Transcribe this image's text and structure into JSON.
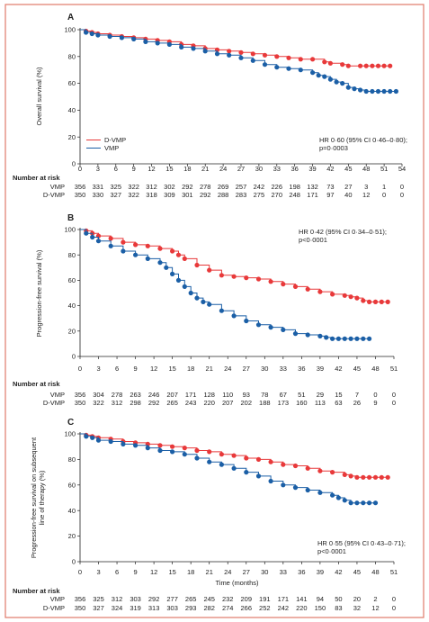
{
  "colors": {
    "dvmp": "#e8393a",
    "vmp": "#1b5fa6",
    "border": "#e07a6a",
    "text": "#222222"
  },
  "x_label": "Time (months)",
  "nar_title": "Number at risk",
  "chart_data": [
    {
      "type": "line",
      "panel": "A",
      "ylabel": "Overall survival (%)",
      "xlabel": "",
      "xticks": [
        0,
        3,
        6,
        9,
        12,
        15,
        18,
        21,
        24,
        27,
        30,
        33,
        36,
        39,
        42,
        45,
        48,
        51,
        54
      ],
      "yticks": [
        0,
        20,
        40,
        60,
        80,
        100
      ],
      "xlim": [
        0,
        54
      ],
      "ylim": [
        0,
        100
      ],
      "legend": [
        "D-VMP",
        "VMP"
      ],
      "annotation": [
        "HR 0·60 (95% CI 0·46–0·80);",
        "p=0·0003"
      ],
      "series": [
        {
          "name": "D-VMP",
          "color": "#e8393a",
          "x": [
            0,
            1,
            2,
            3,
            5,
            7,
            9,
            11,
            13,
            15,
            17,
            19,
            21,
            23,
            25,
            27,
            29,
            31,
            33,
            35,
            37,
            39,
            41,
            42,
            44,
            45,
            47,
            48,
            49,
            50,
            51,
            52
          ],
          "y": [
            100,
            99,
            98,
            97,
            96,
            95,
            94,
            93,
            92,
            91,
            89,
            88,
            86,
            85,
            84,
            83,
            82,
            81,
            80,
            79,
            78,
            78,
            76,
            75,
            74,
            73,
            73,
            73,
            73,
            73,
            73,
            73
          ]
        },
        {
          "name": "VMP",
          "color": "#1b5fa6",
          "x": [
            0,
            1,
            2,
            3,
            5,
            7,
            9,
            11,
            13,
            15,
            17,
            19,
            21,
            23,
            25,
            27,
            29,
            31,
            33,
            35,
            37,
            39,
            40,
            41,
            42,
            43,
            44,
            45,
            46,
            47,
            48,
            49,
            50,
            51,
            52,
            53
          ],
          "y": [
            100,
            98,
            97,
            96,
            95,
            94,
            93,
            91,
            90,
            89,
            87,
            86,
            84,
            82,
            81,
            79,
            77,
            74,
            72,
            71,
            70,
            68,
            66,
            65,
            63,
            61,
            60,
            57,
            56,
            55,
            54,
            54,
            54,
            54,
            54,
            54
          ]
        }
      ],
      "number_at_risk": [
        {
          "name": "VMP",
          "values": [
            "356",
            "331",
            "325",
            "322",
            "312",
            "302",
            "292",
            "278",
            "269",
            "257",
            "242",
            "226",
            "198",
            "132",
            "73",
            "27",
            "3",
            "1",
            "0"
          ]
        },
        {
          "name": "D-VMP",
          "values": [
            "350",
            "330",
            "327",
            "322",
            "318",
            "309",
            "301",
            "292",
            "288",
            "283",
            "275",
            "270",
            "248",
            "171",
            "97",
            "40",
            "12",
            "0",
            "0"
          ]
        }
      ]
    },
    {
      "type": "line",
      "panel": "B",
      "ylabel": "Progression-free survival (%)",
      "xlabel": "",
      "xticks": [
        0,
        3,
        6,
        9,
        12,
        15,
        18,
        21,
        24,
        27,
        30,
        33,
        36,
        39,
        42,
        45,
        48,
        51
      ],
      "yticks": [
        0,
        20,
        40,
        60,
        80,
        100
      ],
      "xlim": [
        0,
        51
      ],
      "ylim": [
        0,
        100
      ],
      "annotation": [
        "HR 0·42 (95% CI 0·34–0·51);",
        "p<0·0001"
      ],
      "series": [
        {
          "name": "D-VMP",
          "color": "#e8393a",
          "x": [
            0,
            1,
            2,
            3,
            5,
            7,
            9,
            11,
            13,
            15,
            16,
            17,
            19,
            21,
            23,
            25,
            27,
            29,
            31,
            33,
            35,
            37,
            39,
            41,
            43,
            44,
            45,
            46,
            47,
            48,
            49,
            50
          ],
          "y": [
            100,
            99,
            97,
            95,
            93,
            90,
            88,
            87,
            85,
            83,
            80,
            77,
            72,
            68,
            64,
            63,
            62,
            61,
            59,
            57,
            55,
            53,
            51,
            49,
            48,
            47,
            46,
            44,
            43,
            43,
            43,
            43
          ]
        },
        {
          "name": "VMP",
          "color": "#1b5fa6",
          "x": [
            0,
            1,
            2,
            3,
            5,
            7,
            9,
            11,
            13,
            14,
            15,
            16,
            17,
            18,
            19,
            20,
            21,
            23,
            25,
            27,
            29,
            31,
            33,
            35,
            37,
            39,
            40,
            41,
            42,
            43,
            44,
            45,
            46,
            47
          ],
          "y": [
            100,
            97,
            94,
            91,
            87,
            83,
            80,
            77,
            74,
            70,
            65,
            60,
            55,
            50,
            46,
            43,
            41,
            36,
            32,
            28,
            25,
            23,
            21,
            18,
            17,
            16,
            15,
            14,
            14,
            14,
            14,
            14,
            14,
            14
          ]
        }
      ],
      "number_at_risk": [
        {
          "name": "VMP",
          "values": [
            "356",
            "304",
            "278",
            "263",
            "246",
            "207",
            "171",
            "128",
            "110",
            "93",
            "78",
            "67",
            "51",
            "29",
            "15",
            "7",
            "0",
            "0"
          ]
        },
        {
          "name": "D-VMP",
          "values": [
            "350",
            "322",
            "312",
            "298",
            "292",
            "265",
            "243",
            "220",
            "207",
            "202",
            "188",
            "173",
            "160",
            "113",
            "63",
            "26",
            "9",
            "0"
          ]
        }
      ]
    },
    {
      "type": "line",
      "panel": "C",
      "ylabel": "Progression-free survival on subsequent line of therapy (%)",
      "ylabel_lines": [
        "Progression-free survival on subsequent",
        "line of therapy (%)"
      ],
      "xlabel": "Time (months)",
      "xticks": [
        0,
        3,
        6,
        9,
        12,
        15,
        18,
        21,
        24,
        27,
        30,
        33,
        36,
        39,
        42,
        45,
        48,
        51
      ],
      "yticks": [
        0,
        20,
        40,
        60,
        80,
        100
      ],
      "xlim": [
        0,
        51
      ],
      "ylim": [
        0,
        100
      ],
      "annotation": [
        "HR 0·55 (95% CI 0·43–0·71);",
        "p<0·0001"
      ],
      "series": [
        {
          "name": "D-VMP",
          "color": "#e8393a",
          "x": [
            0,
            1,
            2,
            3,
            5,
            7,
            9,
            11,
            13,
            15,
            17,
            19,
            21,
            23,
            25,
            27,
            29,
            31,
            33,
            35,
            37,
            39,
            41,
            43,
            44,
            45,
            46,
            47,
            48,
            49,
            50
          ],
          "y": [
            100,
            99,
            98,
            97,
            96,
            94,
            93,
            92,
            91,
            90,
            89,
            87,
            86,
            84,
            83,
            81,
            80,
            78,
            76,
            75,
            73,
            71,
            70,
            68,
            67,
            66,
            66,
            66,
            66,
            66,
            66
          ]
        },
        {
          "name": "VMP",
          "color": "#1b5fa6",
          "x": [
            0,
            1,
            2,
            3,
            5,
            7,
            9,
            11,
            13,
            15,
            17,
            19,
            21,
            23,
            25,
            27,
            29,
            31,
            33,
            35,
            37,
            39,
            41,
            42,
            43,
            44,
            45,
            46,
            47,
            48
          ],
          "y": [
            100,
            98,
            97,
            95,
            94,
            92,
            91,
            89,
            87,
            86,
            84,
            81,
            78,
            76,
            73,
            70,
            67,
            63,
            60,
            58,
            56,
            54,
            52,
            50,
            48,
            46,
            46,
            46,
            46,
            46
          ]
        }
      ],
      "number_at_risk": [
        {
          "name": "VMP",
          "values": [
            "356",
            "325",
            "312",
            "303",
            "292",
            "277",
            "265",
            "245",
            "232",
            "209",
            "191",
            "171",
            "141",
            "94",
            "50",
            "20",
            "2",
            "0"
          ]
        },
        {
          "name": "D-VMP",
          "values": [
            "350",
            "327",
            "324",
            "319",
            "313",
            "303",
            "293",
            "282",
            "274",
            "266",
            "252",
            "242",
            "220",
            "150",
            "83",
            "32",
            "12",
            "0"
          ]
        }
      ]
    }
  ]
}
